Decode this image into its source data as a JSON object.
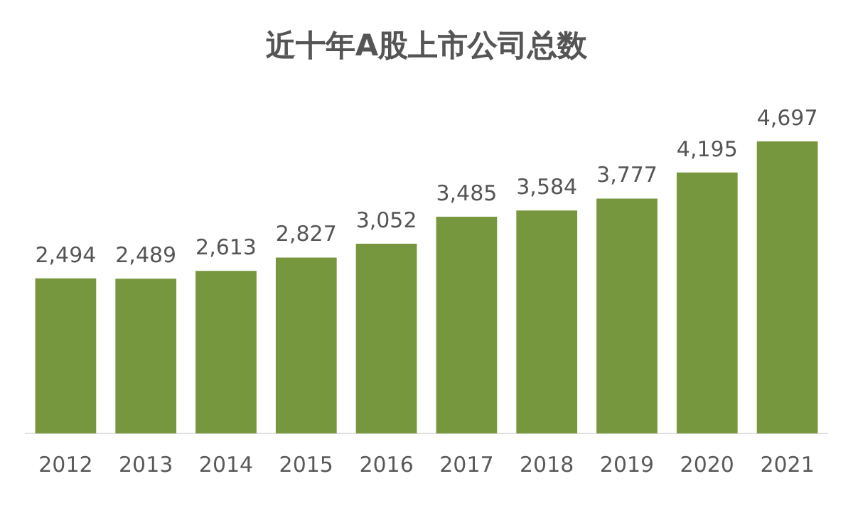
{
  "chart_data": {
    "type": "bar",
    "title": "近十年A股上市公司总数",
    "categories": [
      "2012",
      "2013",
      "2014",
      "2015",
      "2016",
      "2017",
      "2018",
      "2019",
      "2020",
      "2021"
    ],
    "values": [
      2494,
      2489,
      2613,
      2827,
      3052,
      3485,
      3584,
      3777,
      4195,
      4697
    ],
    "value_labels": [
      "2,494",
      "2,489",
      "2,613",
      "2,827",
      "3,052",
      "3,485",
      "3,584",
      "3,777",
      "4,195",
      "4,697"
    ],
    "color": "#76973e",
    "grid": false,
    "legend": false
  }
}
